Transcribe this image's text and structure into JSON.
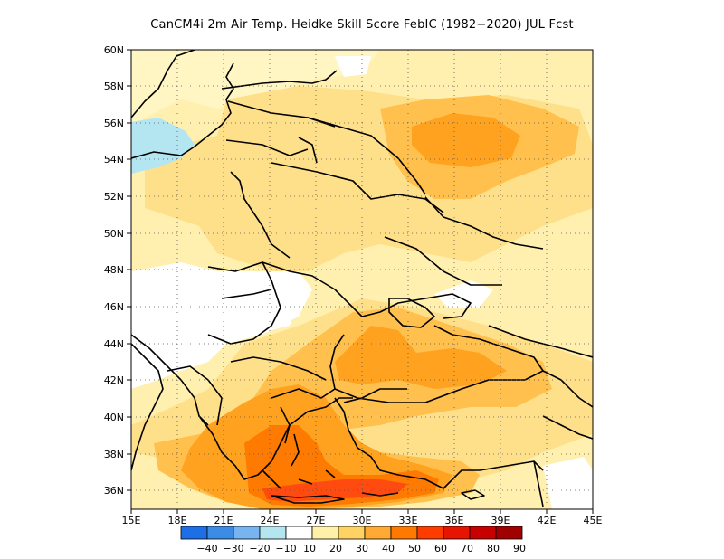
{
  "title": "CanCM4i  2m Air Temp. Heidke Skill Score FebIC (1982−2020) JUL Fcst",
  "map": {
    "lon_range": [
      15,
      45
    ],
    "lat_range": [
      35,
      60
    ],
    "lon_ticks": [
      "15E",
      "18E",
      "21E",
      "24E",
      "27E",
      "30E",
      "33E",
      "36E",
      "39E",
      "42E",
      "45E"
    ],
    "lat_ticks": [
      "36N",
      "38N",
      "40N",
      "42N",
      "44N",
      "46N",
      "48N",
      "50N",
      "52N",
      "54N",
      "56N",
      "58N",
      "60N"
    ],
    "grid": "dotted"
  },
  "colorbar": {
    "labels": [
      "−40",
      "−30",
      "−20",
      "−10",
      "10",
      "20",
      "30",
      "40",
      "50",
      "60",
      "70",
      "80",
      "90"
    ],
    "colors": [
      "#1e6ee6",
      "#3c8ce6",
      "#78b4f0",
      "#b4e6f0",
      "#ffffff",
      "#fff0aa",
      "#ffd264",
      "#ffaa32",
      "#ff7800",
      "#ff3c00",
      "#e61400",
      "#c80000",
      "#a00000"
    ]
  },
  "colors": {
    "skill_10": "#fff6c4",
    "skill_20": "#ffe08a",
    "skill_30": "#ffc04d",
    "skill_40": "#ffa21f",
    "skill_50": "#ff7a00",
    "skill_60": "#ff4a10",
    "neg_10": "#b4e6f2",
    "none": "#ffffff"
  }
}
